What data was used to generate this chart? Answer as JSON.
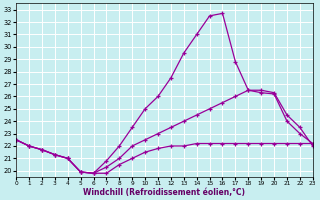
{
  "bg_color": "#c8eef0",
  "grid_color": "#ffffff",
  "line_color": "#990099",
  "xlabel": "Windchill (Refroidissement éolien,°C)",
  "xlim": [
    0,
    23
  ],
  "ylim": [
    19.5,
    33.5
  ],
  "yticks": [
    20,
    21,
    22,
    23,
    24,
    25,
    26,
    27,
    28,
    29,
    30,
    31,
    32,
    33
  ],
  "xticks": [
    0,
    1,
    2,
    3,
    4,
    5,
    6,
    7,
    8,
    9,
    10,
    11,
    12,
    13,
    14,
    15,
    16,
    17,
    18,
    19,
    20,
    21,
    22,
    23
  ],
  "series1_x": [
    0,
    1,
    2,
    3,
    4,
    5,
    6,
    7,
    8,
    9,
    10,
    11,
    12,
    13,
    14,
    15,
    16,
    17,
    18,
    19,
    20,
    21,
    22,
    23
  ],
  "series1_y": [
    22.5,
    22.0,
    21.7,
    21.3,
    21.0,
    19.9,
    19.8,
    20.8,
    22.0,
    23.5,
    25.0,
    26.0,
    27.5,
    29.5,
    31.0,
    32.5,
    32.7,
    28.8,
    26.5,
    26.3,
    26.2,
    24.0,
    23.0,
    22.2
  ],
  "series2_x": [
    0,
    1,
    2,
    3,
    4,
    5,
    6,
    7,
    8,
    9,
    10,
    11,
    12,
    13,
    14,
    15,
    16,
    17,
    18,
    19,
    20,
    21,
    22,
    23
  ],
  "series2_y": [
    22.5,
    22.0,
    21.7,
    21.3,
    21.0,
    19.9,
    19.8,
    20.3,
    21.0,
    22.0,
    22.5,
    23.0,
    23.5,
    24.0,
    24.5,
    25.0,
    25.5,
    26.0,
    26.5,
    26.5,
    26.3,
    24.5,
    23.5,
    22.0
  ],
  "series3_x": [
    0,
    1,
    2,
    3,
    4,
    5,
    6,
    7,
    8,
    9,
    10,
    11,
    12,
    13,
    14,
    15,
    16,
    17,
    18,
    19,
    20,
    21,
    22,
    23
  ],
  "series3_y": [
    22.5,
    22.0,
    21.7,
    21.3,
    21.0,
    19.9,
    19.8,
    19.8,
    20.5,
    21.0,
    21.5,
    21.8,
    22.0,
    22.0,
    22.2,
    22.2,
    22.2,
    22.2,
    22.2,
    22.2,
    22.2,
    22.2,
    22.2,
    22.2
  ]
}
